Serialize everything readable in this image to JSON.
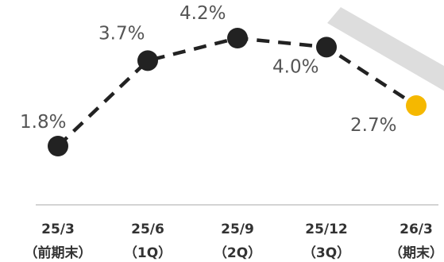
{
  "chart_data": {
    "type": "line",
    "title": "",
    "xlabel": "",
    "ylabel": "",
    "categories": [
      "25/3",
      "25/6",
      "25/9",
      "25/12",
      "26/3"
    ],
    "sublabels": [
      "（前期末）",
      "（1Q）",
      "（2Q）",
      "（3Q）",
      "（期末）"
    ],
    "series": [
      {
        "values": [
          1.8,
          3.7,
          4.2,
          4.0,
          2.7
        ],
        "value_labels": [
          "1.8%",
          "3.7%",
          "4.2%",
          "4.0%",
          "2.7%"
        ],
        "color": "#222222",
        "highlight_color": "#F5B800",
        "line_style": "dashed"
      }
    ],
    "ylim": [
      1.6,
      4.5
    ],
    "grid": false,
    "legend": "none",
    "arrow_color": "#dddddd"
  }
}
